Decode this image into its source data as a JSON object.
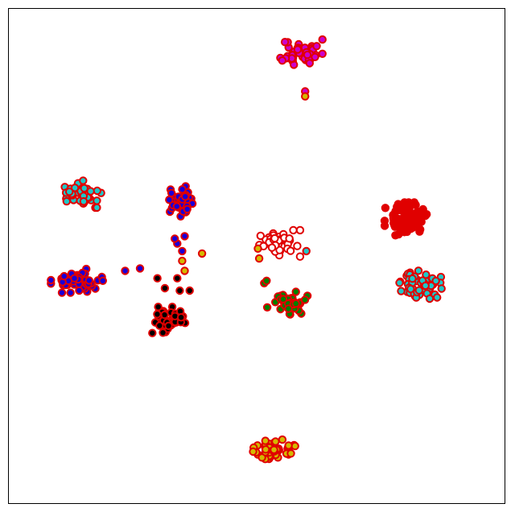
{
  "chart_data": {
    "type": "scatter",
    "title": "",
    "xlabel": "",
    "ylabel": "",
    "xlim": [
      -100,
      100
    ],
    "ylim": [
      -100,
      100
    ],
    "grid": false,
    "legend": "none",
    "ticks": "hidden",
    "marker": {
      "shape": "circle",
      "edge_color": "#e00000"
    },
    "clusters": [
      {
        "name": "",
        "fill": "#cc00cc",
        "center": [
          18,
          82
        ],
        "spread": [
          7,
          5
        ],
        "n": 48,
        "seed": 11
      },
      {
        "name": "",
        "fill": "#cc00cc",
        "points": [
          [
            19.5,
            66.5
          ]
        ]
      },
      {
        "name": "",
        "fill": "#d4b800",
        "points": [
          [
            19.5,
            64.5
          ]
        ]
      },
      {
        "name": "",
        "fill": "#e00000",
        "center": [
          60,
          15
        ],
        "spread": [
          7,
          5.5
        ],
        "n": 70,
        "seed": 23
      },
      {
        "name": "",
        "fill": "#1ec8c8",
        "center": [
          66,
          -12
        ],
        "spread": [
          7,
          5
        ],
        "n": 52,
        "seed": 37
      },
      {
        "name": "",
        "fill": "#1ec8c8",
        "center": [
          -70,
          25
        ],
        "spread": [
          8,
          4.5
        ],
        "n": 42,
        "seed": 41
      },
      {
        "name": "",
        "fill": "#1a00d8",
        "center": [
          -72,
          -10
        ],
        "spread": [
          9,
          4
        ],
        "n": 62,
        "seed": 53
      },
      {
        "name": "",
        "fill": "#1a00d8",
        "points": [
          [
            -47,
            -5
          ],
          [
            -53,
            -6
          ]
        ]
      },
      {
        "name": "",
        "fill": "#1a00d8",
        "center": [
          -31,
          22
        ],
        "spread": [
          5,
          6
        ],
        "n": 44,
        "seed": 61
      },
      {
        "name": "",
        "fill": "#1a00d8",
        "points": [
          [
            -32,
            5
          ],
          [
            -30,
            2
          ],
          [
            -33,
            7
          ],
          [
            -29,
            8
          ]
        ]
      },
      {
        "name": "",
        "fill": "#d4b800",
        "points": [
          [
            -22,
            1
          ],
          [
            -30,
            -2
          ],
          [
            -29,
            -6
          ]
        ]
      },
      {
        "name": "",
        "fill": "#000000",
        "points": [
          [
            -37,
            -13
          ],
          [
            -32,
            -9
          ],
          [
            -31,
            -14
          ],
          [
            -27,
            -14
          ],
          [
            -40,
            -9
          ]
        ]
      },
      {
        "name": "",
        "fill": "#000000",
        "center": [
          -35,
          -26
        ],
        "spread": [
          6,
          4.5
        ],
        "n": 52,
        "seed": 71
      },
      {
        "name": "",
        "fill": "#ffffff",
        "center": [
          9,
          5
        ],
        "spread": [
          7,
          4.5
        ],
        "n": 50,
        "seed": 83
      },
      {
        "name": "",
        "fill": "#1ec8c8",
        "points": [
          [
            20,
            2
          ]
        ]
      },
      {
        "name": "",
        "fill": "#d4b800",
        "points": [
          [
            1,
            -1
          ],
          [
            0.5,
            3
          ]
        ]
      },
      {
        "name": "",
        "fill": "#008000",
        "center": [
          12,
          -19
        ],
        "spread": [
          7,
          4
        ],
        "n": 52,
        "seed": 97
      },
      {
        "name": "",
        "fill": "#008000",
        "points": [
          [
            3,
            -11
          ],
          [
            4,
            -10
          ]
        ]
      },
      {
        "name": "",
        "fill": "#d4b800",
        "center": [
          7,
          -78
        ],
        "spread": [
          7,
          3.5
        ],
        "n": 55,
        "seed": 103
      }
    ]
  }
}
